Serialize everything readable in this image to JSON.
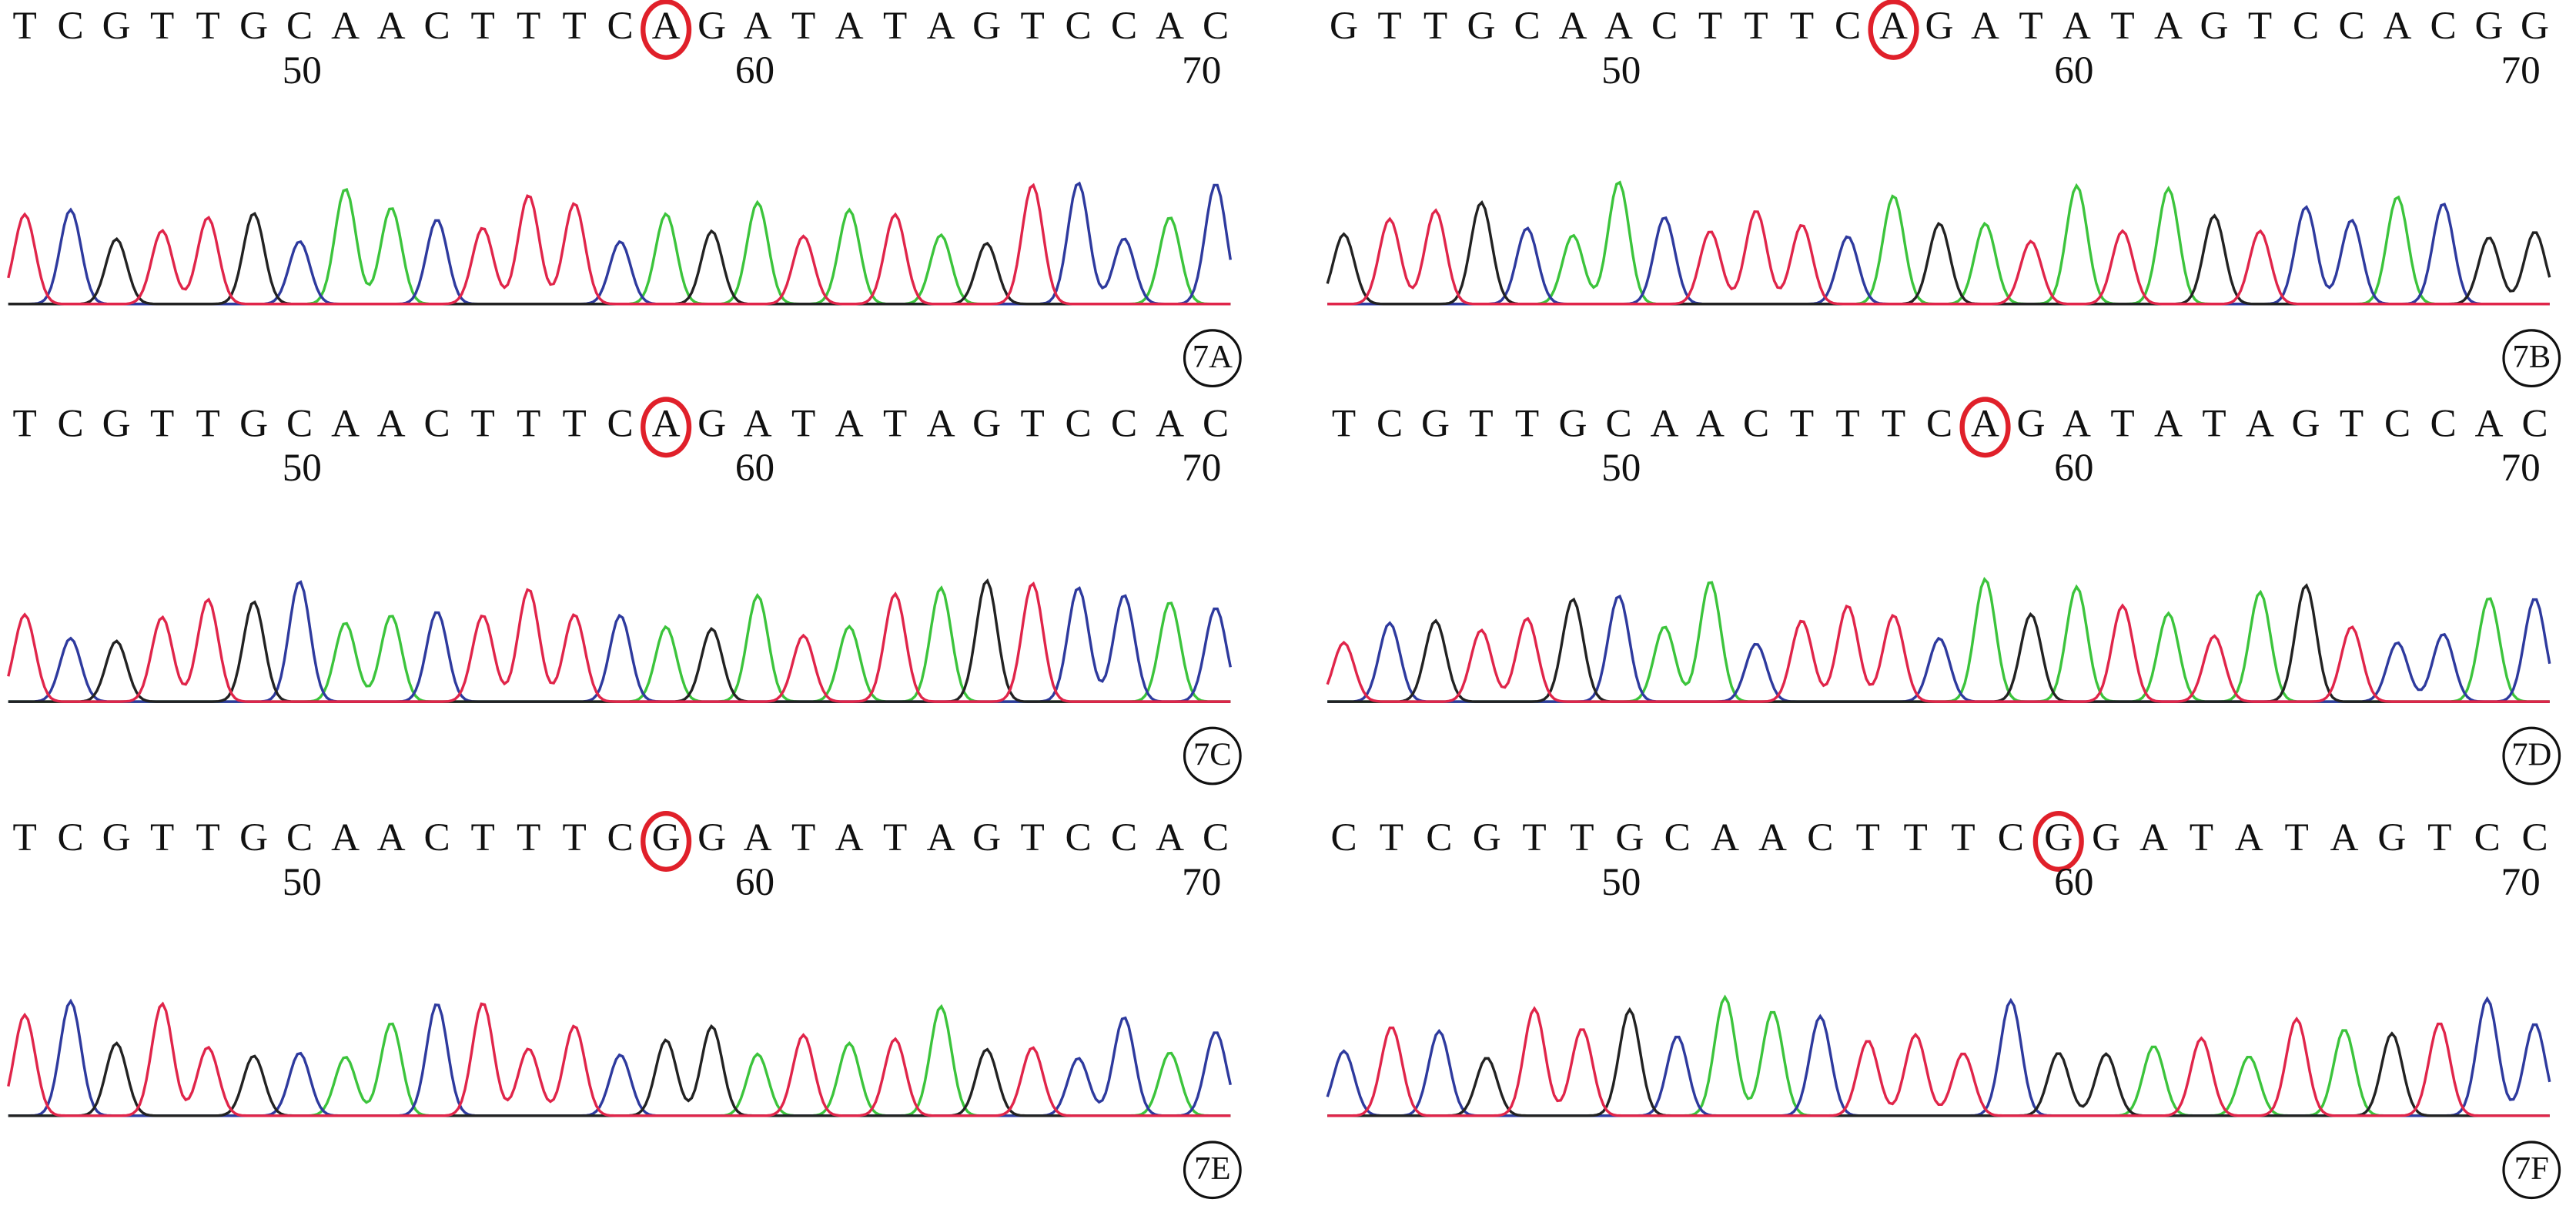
{
  "panels": [
    {
      "label": "7A",
      "bases": [
        "T",
        "C",
        "G",
        "T",
        "T",
        "G",
        "C",
        "A",
        "A",
        "C",
        "T",
        "T",
        "T",
        "C",
        "A",
        "G",
        "A",
        "T",
        "A",
        "T",
        "A",
        "G",
        "T",
        "C",
        "C",
        "A",
        "C"
      ],
      "highlight": 14,
      "positions": [
        50,
        60,
        70
      ]
    },
    {
      "label": "7B",
      "bases": [
        "G",
        "T",
        "T",
        "G",
        "C",
        "A",
        "A",
        "C",
        "T",
        "T",
        "T",
        "C",
        "A",
        "G",
        "A",
        "T",
        "A",
        "T",
        "A",
        "G",
        "T",
        "C",
        "C",
        "A",
        "C",
        "G",
        "G"
      ],
      "highlight": 12,
      "positions": [
        50,
        60,
        70
      ]
    },
    {
      "label": "7C",
      "bases": [
        "T",
        "C",
        "G",
        "T",
        "T",
        "G",
        "C",
        "A",
        "A",
        "C",
        "T",
        "T",
        "T",
        "C",
        "A",
        "G",
        "A",
        "T",
        "A",
        "T",
        "A",
        "G",
        "T",
        "C",
        "C",
        "A",
        "C"
      ],
      "highlight": 14,
      "positions": [
        50,
        60,
        70
      ]
    },
    {
      "label": "7D",
      "bases": [
        "T",
        "C",
        "G",
        "T",
        "T",
        "G",
        "C",
        "A",
        "A",
        "C",
        "T",
        "T",
        "T",
        "C",
        "A",
        "G",
        "A",
        "T",
        "A",
        "T",
        "A",
        "G",
        "T",
        "C",
        "C",
        "A",
        "C"
      ],
      "highlight": 14,
      "positions": [
        50,
        60,
        70
      ]
    },
    {
      "label": "7E",
      "bases": [
        "T",
        "C",
        "G",
        "T",
        "T",
        "G",
        "C",
        "A",
        "A",
        "C",
        "T",
        "T",
        "T",
        "C",
        "G",
        "G",
        "A",
        "T",
        "A",
        "T",
        "A",
        "G",
        "T",
        "C",
        "C",
        "A",
        "C"
      ],
      "highlight": 14,
      "positions": [
        50,
        60,
        70
      ]
    },
    {
      "label": "7F",
      "bases": [
        "C",
        "T",
        "C",
        "G",
        "T",
        "T",
        "G",
        "C",
        "A",
        "A",
        "C",
        "T",
        "T",
        "T",
        "C",
        "G",
        "G",
        "A",
        "T",
        "A",
        "T",
        "A",
        "G",
        "T",
        "C",
        "C"
      ],
      "highlight": 15,
      "positions": [
        50,
        60,
        70
      ]
    }
  ]
}
